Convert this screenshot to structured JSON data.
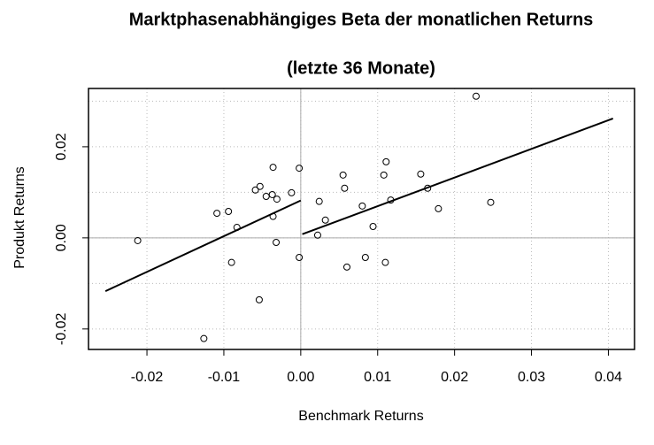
{
  "chart_data": {
    "type": "scatter",
    "title": "Marktphasenabhängiges Beta der monatlichen Returns",
    "subtitle": "(letzte 36 Monate)",
    "x_label": "Benchmark Returns",
    "y_label": "Produkt Returns",
    "xlim": [
      -0.0276,
      0.0434
    ],
    "ylim": [
      -0.0245,
      0.0328
    ],
    "xticks": [
      {
        "value": -0.02,
        "label": "-0.02"
      },
      {
        "value": -0.01,
        "label": "-0.01"
      },
      {
        "value": 0,
        "label": "0.00"
      },
      {
        "value": 0.01,
        "label": "0.01"
      },
      {
        "value": 0.02,
        "label": "0.02"
      },
      {
        "value": 0.03,
        "label": "0.03"
      },
      {
        "value": 0.04,
        "label": "0.04"
      }
    ],
    "yticks": [
      {
        "value": -0.02,
        "label": "-0.02"
      },
      {
        "value": 0,
        "label": "0.00"
      },
      {
        "value": 0.02,
        "label": "0.02"
      }
    ],
    "ygrid": [
      -0.02,
      -0.01,
      0,
      0.01,
      0.02,
      0.03
    ],
    "grid": true,
    "reference_lines": {
      "x": 0,
      "y": 0
    },
    "x": [
      -0.0212,
      -0.0126,
      -0.0109,
      -0.0094,
      -0.009,
      -0.0083,
      -0.0059,
      -0.0053,
      -0.0054,
      -0.0045,
      -0.0036,
      -0.0037,
      -0.0036,
      -0.0031,
      -0.0032,
      -0.0012,
      -0.0002,
      -0.0002,
      0.0024,
      0.0032,
      0.0022,
      0.0055,
      0.0057,
      0.006,
      0.008,
      0.0084,
      0.0094,
      0.0108,
      0.0111,
      0.0117,
      0.011,
      0.0156,
      0.0165,
      0.0179,
      0.0228,
      0.0247
    ],
    "values": [
      -0.0006,
      -0.0221,
      0.0054,
      0.0058,
      -0.0054,
      0.0023,
      0.0105,
      0.0113,
      -0.0136,
      0.0091,
      0.0155,
      0.0095,
      0.0047,
      0.0085,
      -0.001,
      0.0099,
      0.0153,
      -0.0043,
      0.008,
      0.0039,
      0.0006,
      0.0138,
      0.0109,
      -0.0064,
      0.007,
      -0.0043,
      0.0025,
      0.0138,
      0.0167,
      0.0083,
      -0.0054,
      0.014,
      0.0109,
      0.0064,
      0.0311,
      0.0078
    ],
    "lines": [
      {
        "x": [
          -0.0254,
          0
        ],
        "y": [
          -0.0117,
          0.0082
        ]
      },
      {
        "x": [
          0.0002,
          0.0406
        ],
        "y": [
          0.0008,
          0.0262
        ]
      }
    ]
  }
}
